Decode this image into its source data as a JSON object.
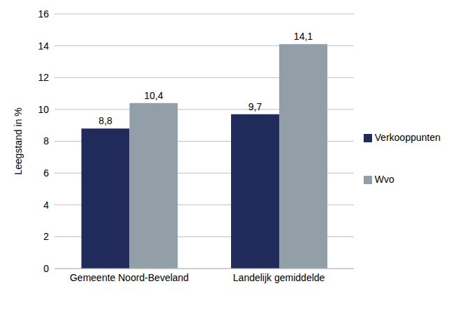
{
  "chart_data": {
    "type": "bar",
    "y_label": "Leegstand in %",
    "categories": [
      "Gemeente Noord-Beveland",
      "Landelijk gemiddelde"
    ],
    "series": [
      {
        "name": "Verkooppunten",
        "color": "#212B5B",
        "values": [
          8.8,
          9.7
        ],
        "value_labels": [
          "8,8",
          "9,7"
        ]
      },
      {
        "name": "Wvo",
        "color": "#929FA8",
        "values": [
          10.4,
          14.1
        ],
        "value_labels": [
          "10,4",
          "14,1"
        ]
      }
    ],
    "ylim": [
      0,
      16
    ],
    "yticks": [
      0,
      2,
      4,
      6,
      8,
      10,
      12,
      14,
      16
    ],
    "grid": true,
    "data_labels": true,
    "legend": "right"
  }
}
